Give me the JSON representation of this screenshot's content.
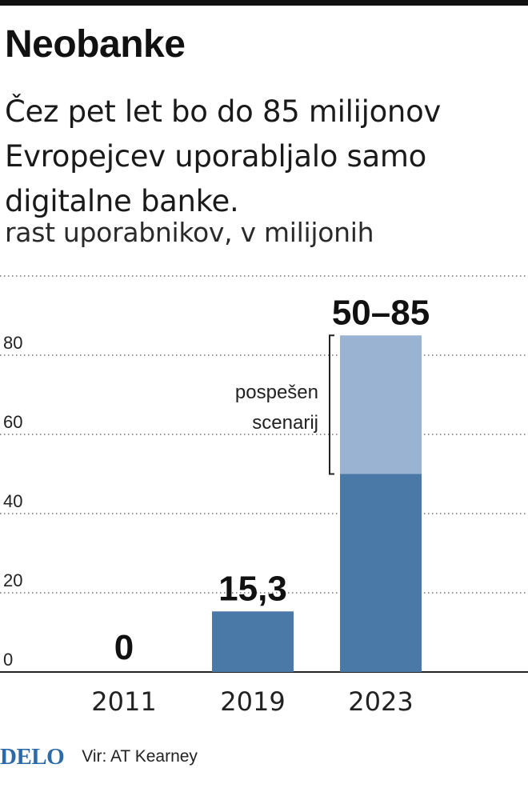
{
  "title": "Neobanke",
  "subtitle": "Čez pet let bo do 85 milijonov Evropejcev uporabljalo samo digitalne banke.",
  "unit_label": "rast uporabnikov, v milijonih",
  "source": "Vir: AT Kearney",
  "logo": "DELO",
  "colors": {
    "bar_base": "#4a79a8",
    "bar_scenario": "#9bb3d2",
    "grid": "#555555",
    "logo": "#2d6aa8"
  },
  "chart_data": {
    "type": "bar",
    "categories": [
      "2011",
      "2019",
      "2023"
    ],
    "series": [
      {
        "values": [
          0,
          15.3,
          50
        ]
      },
      {
        "values": [
          0,
          0,
          35
        ]
      }
    ],
    "value_labels": [
      "0",
      "15,3",
      "50–85"
    ],
    "y_ticks": [
      "0",
      "20",
      "40",
      "60",
      "80"
    ],
    "ylim": [
      0,
      100
    ],
    "grid": true,
    "annotation": {
      "lines": [
        "pospešen",
        "scenarij"
      ],
      "category": "2023",
      "range": [
        50,
        85
      ]
    }
  }
}
